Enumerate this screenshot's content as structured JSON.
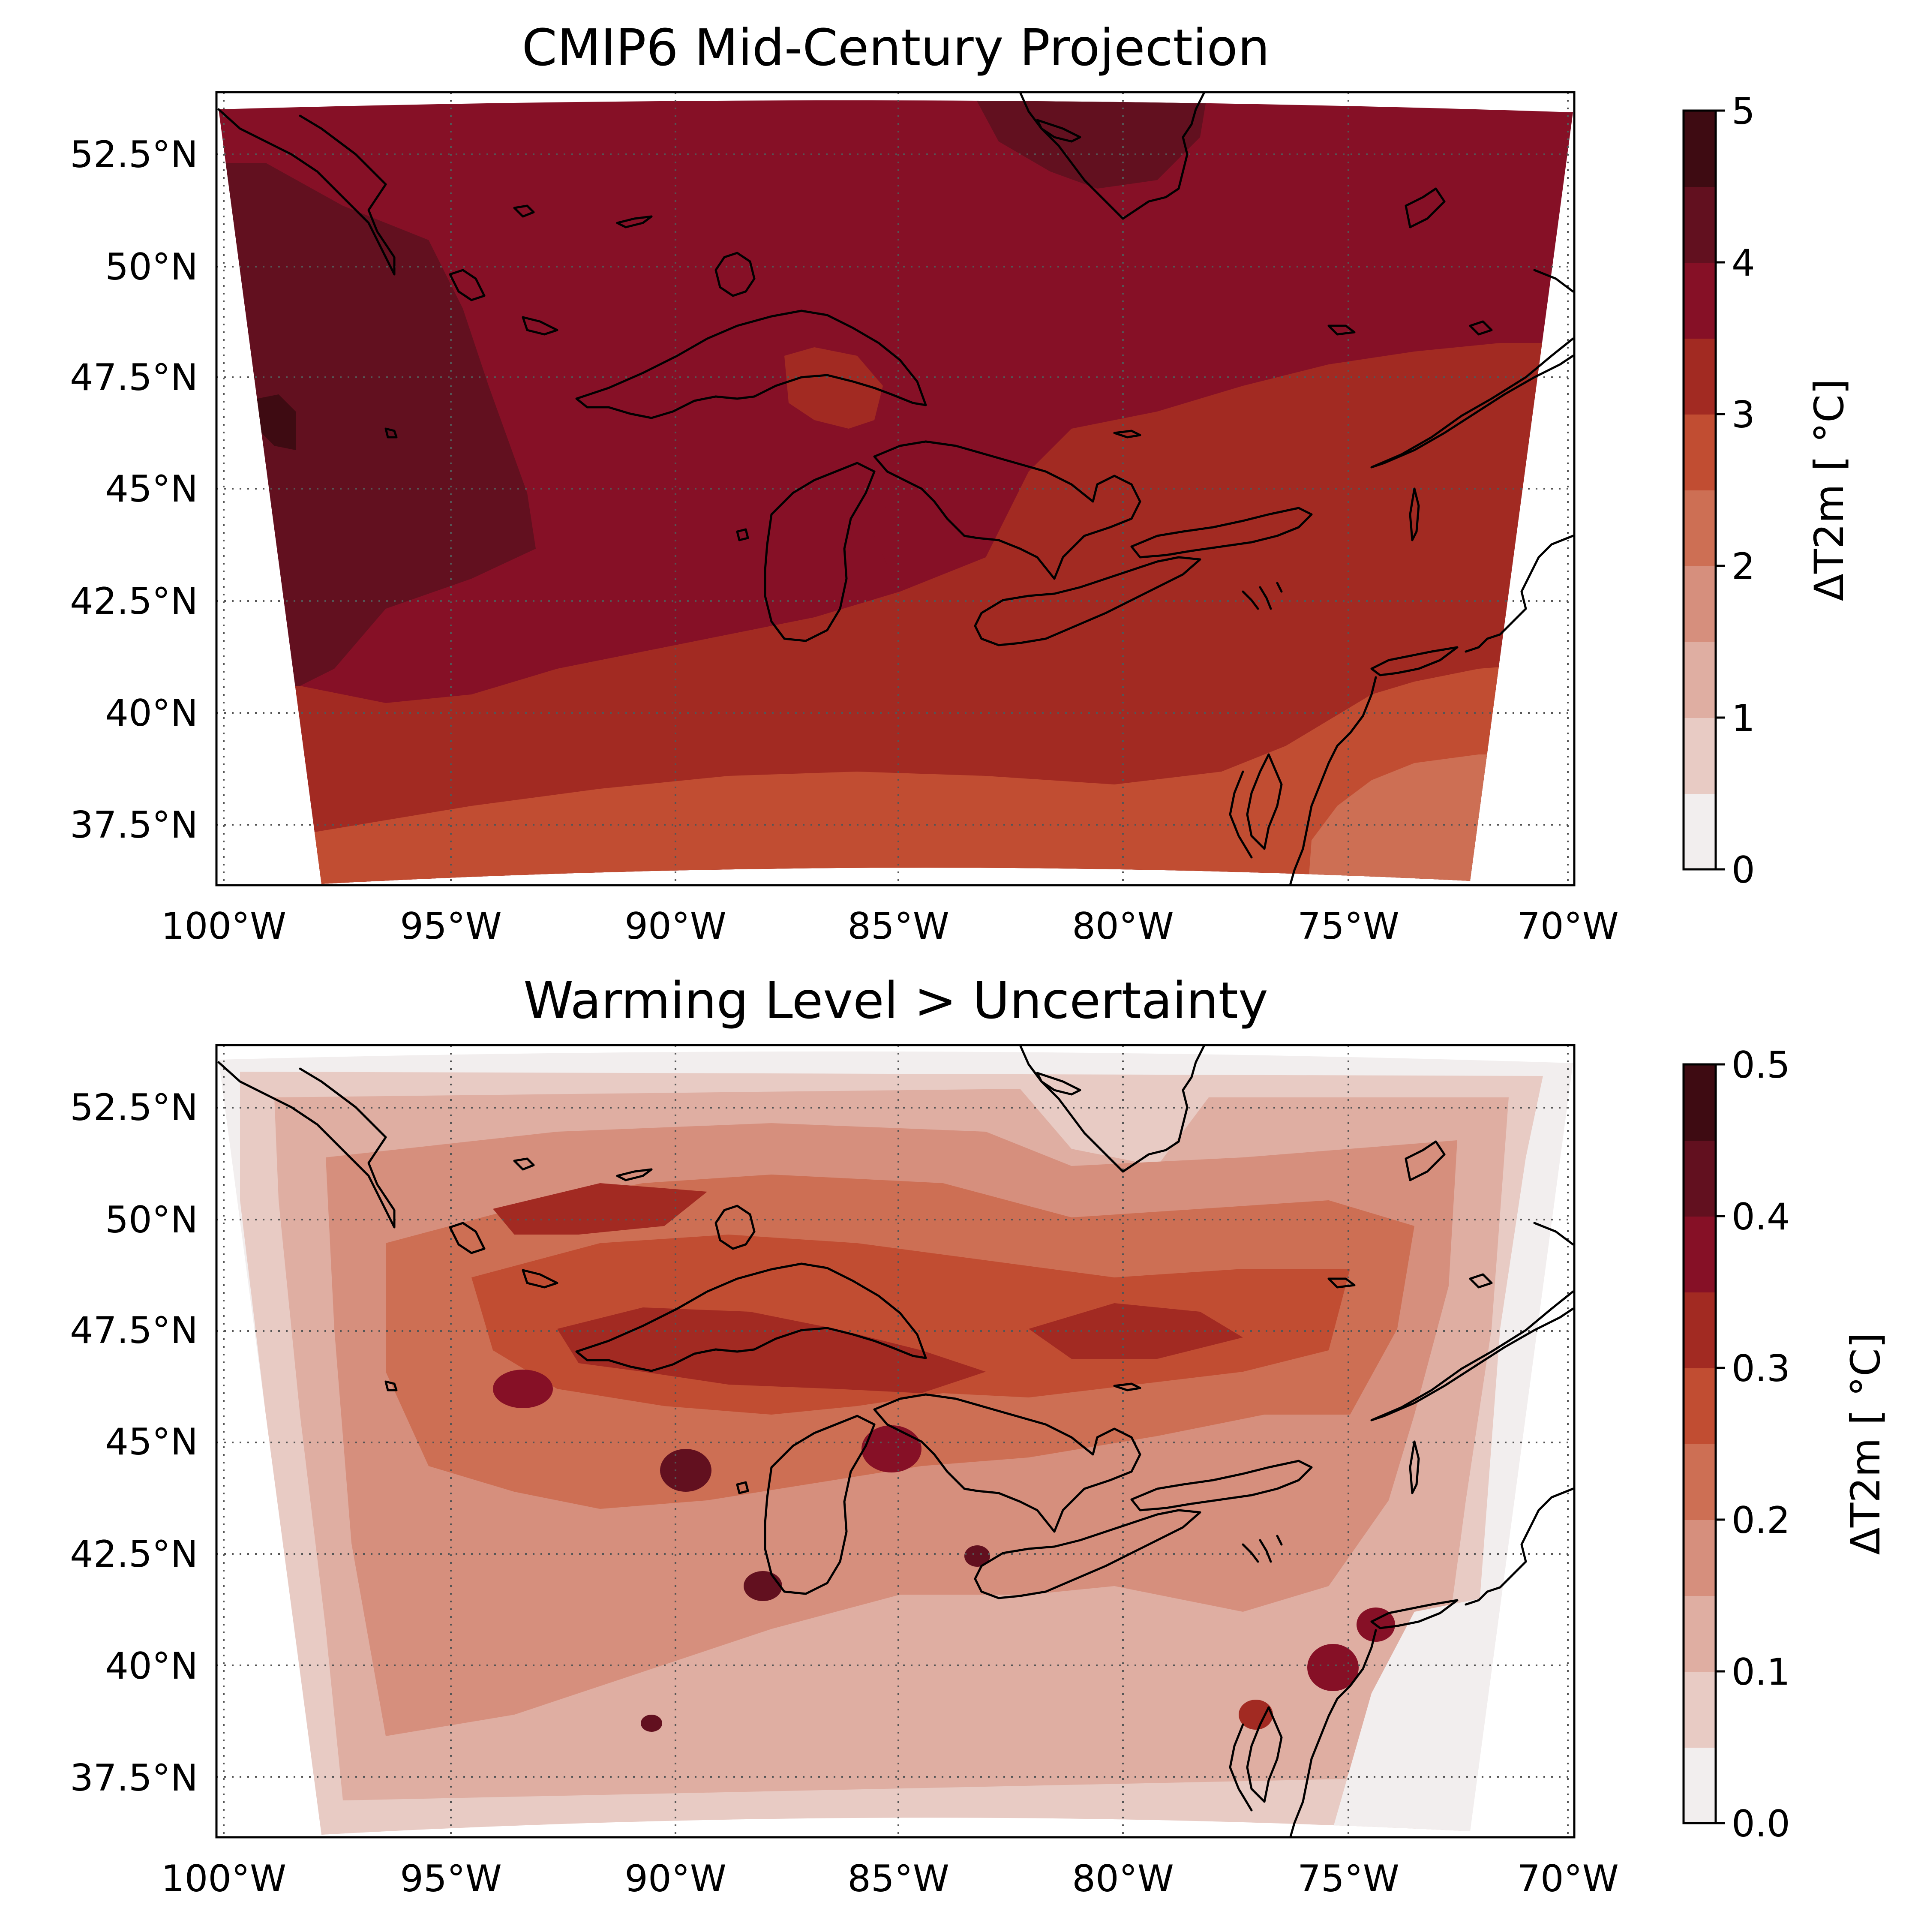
{
  "palette": [
    "#f2eeee",
    "#e8cbc4",
    "#dfaea2",
    "#d68f7d",
    "#cd6f54",
    "#c14d32",
    "#a22a22",
    "#861026",
    "#62101f",
    "#3e0b12"
  ],
  "coast_color": "#000000",
  "panels": [
    {
      "title": "CMIP6 Mid-Century Projection",
      "x_ticks": [
        "100°W",
        "95°W",
        "90°W",
        "85°W",
        "80°W",
        "75°W",
        "70°W"
      ],
      "y_ticks": [
        "52.5°N",
        "50°N",
        "47.5°N",
        "45°N",
        "42.5°N",
        "40°N",
        "37.5°N"
      ],
      "colorbar": {
        "label": "ΔT2m [$^\\circ$C]",
        "label_text": "ΔT2m [ °C]",
        "range": [
          0,
          5
        ],
        "levels": 10,
        "tick_labels": [
          "0",
          "1",
          "2",
          "3",
          "4",
          "5"
        ],
        "tick_values": [
          0,
          1,
          2,
          3,
          4,
          5
        ]
      }
    },
    {
      "title": "Warming Level > Uncertainty",
      "x_ticks": [
        "100°W",
        "95°W",
        "90°W",
        "85°W",
        "80°W",
        "75°W",
        "70°W"
      ],
      "y_ticks": [
        "52.5°N",
        "50°N",
        "47.5°N",
        "45°N",
        "42.5°N",
        "40°N",
        "37.5°N"
      ],
      "colorbar": {
        "label_text": "ΔT2m [ °C]",
        "range": [
          0.0,
          0.5
        ],
        "levels": 10,
        "tick_labels": [
          "0.0",
          "0.1",
          "0.2",
          "0.3",
          "0.4",
          "0.5"
        ],
        "tick_values": [
          0.0,
          0.1,
          0.2,
          0.3,
          0.4,
          0.5
        ]
      }
    }
  ],
  "map_extent": {
    "lon": [
      -100,
      -70
    ],
    "lat": [
      36,
      54
    ]
  }
}
